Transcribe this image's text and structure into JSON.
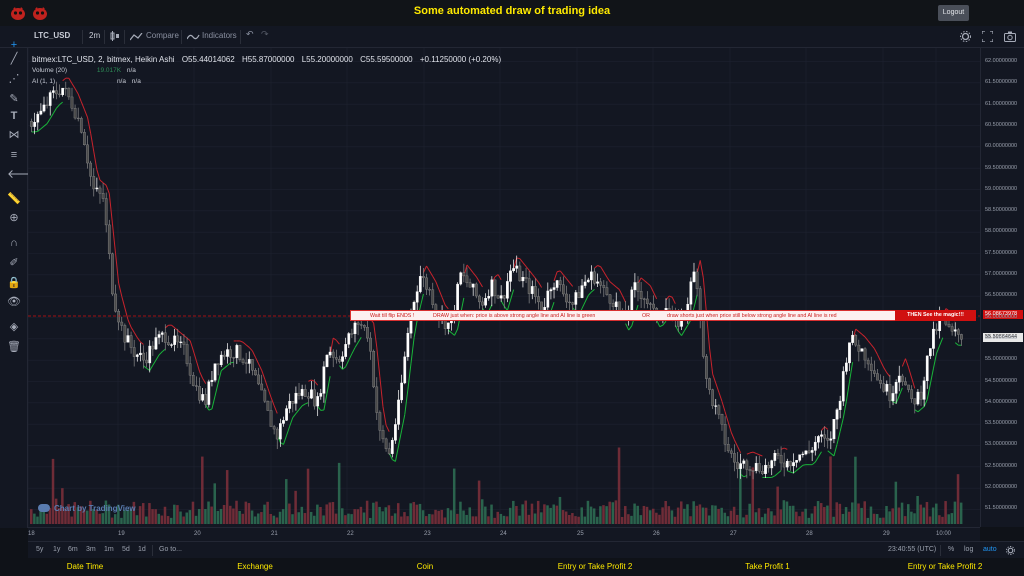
{
  "app": {
    "title": "Some automated draw of trading idea",
    "logout_label": "Logout"
  },
  "toolbar": {
    "symbol": "LTC_USD",
    "interval": "2m",
    "compare_label": "Compare",
    "indicators_label": "Indicators"
  },
  "legend": {
    "symbol_line": "bitmex:LTC_USD, 2, bitmex, Heikin Ashi",
    "open": "O55.44014062",
    "high": "H55.87000000",
    "low": "L55.20000000",
    "close": "C55.59500000",
    "change": "+0.11250000 (+0.20%)",
    "volume_label": "Volume (20)",
    "volume_value": "19.017K",
    "volume_na": "n/a",
    "ai_label": "AI (1, 1)",
    "ai_na1": "n/a",
    "ai_na2": "n/a"
  },
  "watermark": "Chart by TradingView",
  "annotation": {
    "t1": "Wait till flip ENDS  !",
    "t2": "DRAW just when:  price is above strong angle line and AI line is green",
    "t3": "OR",
    "t4": "draw shorts just when price still below strong angle line and AI line is red",
    "t5": "THEN See the magic!!!"
  },
  "price_axis": {
    "labels": [
      "62.00000000",
      "61.50000000",
      "61.00000000",
      "60.50000000",
      "60.00000000",
      "59.50000000",
      "59.00000000",
      "58.50000000",
      "58.00000000",
      "57.50000000",
      "57.00000000",
      "56.50000000",
      "56.00000000",
      "55.50000000",
      "55.00000000",
      "54.50000000",
      "54.00000000",
      "53.50000000",
      "53.00000000",
      "52.50000000",
      "52.00000000",
      "51.50000000"
    ],
    "line_price": "56.08673978",
    "last_price": "55.59664644"
  },
  "time_axis": {
    "labels": [
      "18",
      "19",
      "20",
      "21",
      "22",
      "23",
      "24",
      "25",
      "26",
      "27",
      "28",
      "29",
      "10:00"
    ]
  },
  "range_bar": {
    "ranges": [
      "5y",
      "1y",
      "6m",
      "3m",
      "1m",
      "5d",
      "1d"
    ],
    "goto": "Go to...",
    "clock": "23:40:55 (UTC)",
    "percent": "%",
    "log": "log",
    "auto": "auto"
  },
  "footer": {
    "columns": [
      "Date Time",
      "Exchange",
      "Coin",
      "Entry or Take Profit 2",
      "Take Profit 1",
      "Entry or Take Profit 2"
    ]
  },
  "colors": {
    "title": "#ffea00",
    "up_candle": "#ffffff",
    "down_candle": "#4a4a4a",
    "ai_line_up": "#19b53a",
    "ai_line_down": "#c8232c",
    "volume_up": "#2e6b52",
    "volume_down": "#7a2f3a",
    "annotation": "#d01010"
  },
  "chart_data": {
    "type": "candlestick",
    "ylim": [
      51.3,
      62.2
    ],
    "xlabels": [
      "18",
      "19",
      "20",
      "21",
      "22",
      "23",
      "24",
      "25",
      "26",
      "27",
      "28",
      "29",
      "10:00"
    ],
    "price_path": [
      60.6,
      60.8,
      61.2,
      61.4,
      61.0,
      60.4,
      59.0,
      58.8,
      56.5,
      55.6,
      55.2,
      55.0,
      55.4,
      55.6,
      55.4,
      55.2,
      54.4,
      54.0,
      55.0,
      55.2,
      55.2,
      55.0,
      54.5,
      53.8,
      53.2,
      53.9,
      54.2,
      54.3,
      54.0,
      55.3,
      55.0,
      55.5,
      55.9,
      55.6,
      53.3,
      52.8,
      54.0,
      56.0,
      57.0,
      56.6,
      56.0,
      55.8,
      57.0,
      56.7,
      56.3,
      56.8,
      56.4,
      57.2,
      56.9,
      56.6,
      56.2,
      56.9,
      56.6,
      56.3,
      56.8,
      57.0,
      56.6,
      56.4,
      55.9,
      56.7,
      56.5,
      56.0,
      56.3,
      55.8,
      56.2,
      57.2,
      54.5,
      53.8,
      53.0,
      52.5,
      52.6,
      52.5,
      52.5,
      52.7,
      52.6,
      52.8,
      52.8,
      53.2,
      53.0,
      54.0,
      55.5,
      55.3,
      55.0,
      54.5,
      54.2,
      54.8,
      54.0,
      54.2,
      55.4,
      56.0,
      55.6,
      55.6
    ]
  }
}
